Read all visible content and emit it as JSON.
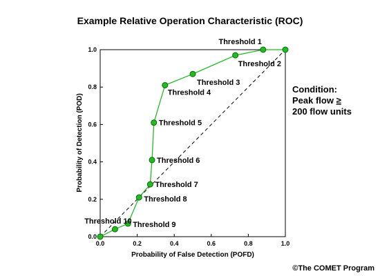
{
  "chart_data": {
    "type": "line",
    "title": "Example Relative Operation Characteristic (ROC)",
    "xlabel": "Probability of False Detection (POFD)",
    "ylabel": "Probability of Detection (POD)",
    "xlim": [
      0,
      1
    ],
    "ylim": [
      0,
      1
    ],
    "x_ticks": [
      "0.0",
      "0.2",
      "0.4",
      "0.6",
      "0.8",
      "1.0"
    ],
    "y_ticks": [
      "0.0",
      "0.2",
      "0.4",
      "0.6",
      "0.8",
      "1.0"
    ],
    "grid": false,
    "reference_line": "diagonal dashed (no skill)",
    "series": [
      {
        "x": [
          0.0,
          0.08,
          0.15,
          0.21,
          0.27,
          0.28,
          0.29,
          0.35,
          0.5,
          0.73,
          0.88,
          1.0
        ],
        "y": [
          0.0,
          0.04,
          0.07,
          0.21,
          0.28,
          0.41,
          0.61,
          0.81,
          0.87,
          0.97,
          1.0,
          1.0
        ],
        "color": "#22bb22"
      }
    ],
    "annotations": [
      {
        "text": "Threshold 1",
        "x": 0.88,
        "y": 1.0
      },
      {
        "text": "Threshold 2",
        "x": 0.73,
        "y": 0.97
      },
      {
        "text": "Threshold 3",
        "x": 0.5,
        "y": 0.87
      },
      {
        "text": "Threshold 4",
        "x": 0.35,
        "y": 0.81
      },
      {
        "text": "Threshold 5",
        "x": 0.29,
        "y": 0.61
      },
      {
        "text": "Threshold 6",
        "x": 0.28,
        "y": 0.41
      },
      {
        "text": "Threshold 7",
        "x": 0.27,
        "y": 0.28
      },
      {
        "text": "Threshold 8",
        "x": 0.21,
        "y": 0.21
      },
      {
        "text": "Threshold 9",
        "x": 0.15,
        "y": 0.07
      },
      {
        "text": "Threshold 10",
        "x": 0.08,
        "y": 0.04
      }
    ]
  },
  "condition": {
    "line1": "Condition:",
    "line2_prefix": "Peak flow ",
    "line2_symbol": "≥",
    "line3": "200 flow units"
  },
  "copyright": "©The COMET Program"
}
